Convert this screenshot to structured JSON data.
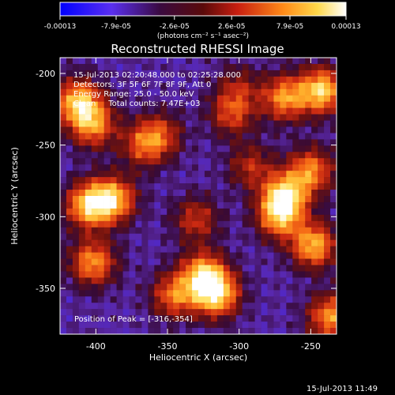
{
  "chart_data": {
    "type": "heatmap",
    "title": "Reconstructed RHESSI Image",
    "xlabel": "Heliocentric X (arcsec)",
    "ylabel": "Heliocentric Y (arcsec)",
    "xlim": [
      -425,
      -232
    ],
    "ylim": [
      -382,
      -189
    ],
    "xticks": [
      "-400",
      "-350",
      "-300",
      "-250"
    ],
    "xtick_values": [
      -400,
      -350,
      -300,
      -250
    ],
    "yticks": [
      "-200",
      "-250",
      "-300",
      "-350"
    ],
    "ytick_values": [
      -200,
      -250,
      -300,
      -350
    ],
    "colormap": [
      "#0000ff",
      "#6a2fd6",
      "#3b0a2a",
      "#8e1a10",
      "#e0301a",
      "#ff8c1a",
      "#ffd24a",
      "#ffffff"
    ],
    "colorbar": {
      "tick_labels": [
        "-0.00013",
        "-7.9e-05",
        "-2.6e-05",
        "2.6e-05",
        "7.9e-05",
        "0.00013"
      ],
      "tick_values": [
        -0.00013,
        -7.9e-05,
        -2.6e-05,
        2.6e-05,
        7.9e-05,
        0.00013
      ],
      "range": [
        -0.00013,
        0.00013
      ],
      "unit_label": "(photons cm⁻² s⁻¹ asec⁻²)"
    },
    "annotations": [
      "15-Jul-2013 02:20:48.000 to 02:25:28.000",
      "Detectors: 3F 5F 6F 7F 8F 9F, Att 0",
      "Energy Range: 25.0 - 50.0 keV",
      "Clean     Total counts: 7.47E+03"
    ],
    "peak_label": "Position of Peak = [-316,-354]",
    "peak": [
      -316,
      -354
    ],
    "emission_sources": [
      {
        "x": -242,
        "y": -212,
        "strength": 1.0
      },
      {
        "x": -268,
        "y": -217,
        "strength": 0.8
      },
      {
        "x": -412,
        "y": -220,
        "strength": 0.95
      },
      {
        "x": -402,
        "y": -236,
        "strength": 0.75
      },
      {
        "x": -367,
        "y": -250,
        "strength": 0.55
      },
      {
        "x": -355,
        "y": -243,
        "strength": 0.5
      },
      {
        "x": -405,
        "y": -292,
        "strength": 0.95
      },
      {
        "x": -388,
        "y": -288,
        "strength": 0.9
      },
      {
        "x": -402,
        "y": -332,
        "strength": 0.8
      },
      {
        "x": -268,
        "y": -285,
        "strength": 0.95
      },
      {
        "x": -250,
        "y": -268,
        "strength": 0.75
      },
      {
        "x": -248,
        "y": -320,
        "strength": 0.9
      },
      {
        "x": -272,
        "y": -300,
        "strength": 0.8
      },
      {
        "x": -316,
        "y": -354,
        "strength": 1.05
      },
      {
        "x": -325,
        "y": -340,
        "strength": 0.85
      },
      {
        "x": -345,
        "y": -355,
        "strength": 0.7
      },
      {
        "x": -236,
        "y": -370,
        "strength": 0.8
      },
      {
        "x": -305,
        "y": -228,
        "strength": 0.55
      },
      {
        "x": -330,
        "y": -302,
        "strength": 0.5
      },
      {
        "x": -292,
        "y": -265,
        "strength": 0.45
      },
      {
        "x": -300,
        "y": -210,
        "strength": 0.35
      }
    ]
  },
  "footer_timestamp": "15-Jul-2013 11:49"
}
